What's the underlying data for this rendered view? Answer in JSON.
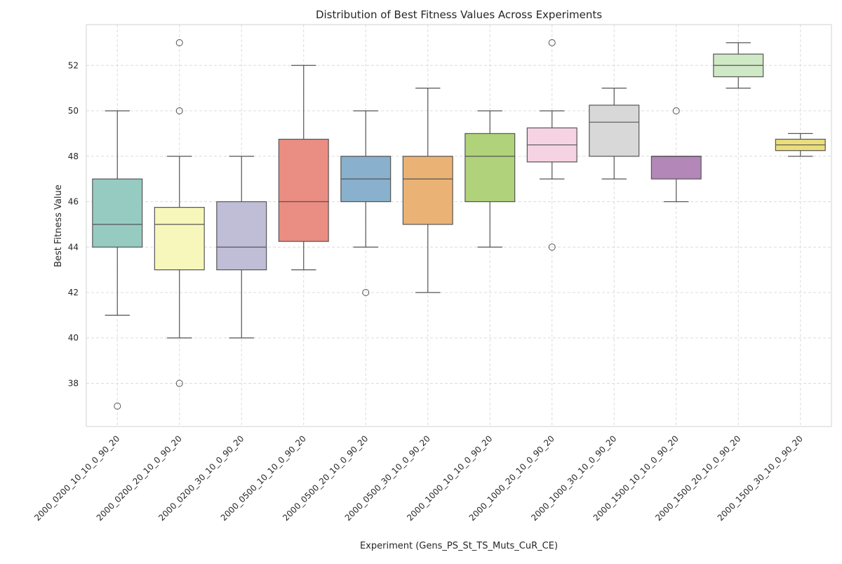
{
  "chart_data": {
    "type": "box",
    "title": "Distribution of Best Fitness Values Across Experiments",
    "xlabel": "Experiment (Gens_PS_St_TS_Muts_CuR_CE)",
    "ylabel": "Best Fitness Value",
    "ylim": [
      36.1,
      53.8
    ],
    "yticks": [
      38,
      40,
      42,
      44,
      46,
      48,
      50,
      52
    ],
    "grid": true,
    "categories": [
      "2000_0200_10_10_0_90_20",
      "2000_0200_20_10_0_90_20",
      "2000_0200_30_10_0_90_20",
      "2000_0500_10_10_0_90_20",
      "2000_0500_20_10_0_90_20",
      "2000_0500_30_10_0_90_20",
      "2000_1000_10_10_0_90_20",
      "2000_1000_20_10_0_90_20",
      "2000_1000_30_10_0_90_20",
      "2000_1500_10_10_0_90_20",
      "2000_1500_20_10_0_90_20",
      "2000_1500_30_10_0_90_20"
    ],
    "boxes": [
      {
        "whisker_low": 41,
        "q1": 44,
        "median": 45,
        "q3": 47,
        "whisker_high": 50,
        "outliers": [
          37
        ],
        "color": "#96cbc2"
      },
      {
        "whisker_low": 40,
        "q1": 43,
        "median": 45,
        "q3": 45.75,
        "whisker_high": 48,
        "outliers": [
          38,
          50,
          53
        ],
        "color": "#f7f7bb"
      },
      {
        "whisker_low": 40,
        "q1": 43,
        "median": 44,
        "q3": 46,
        "whisker_high": 48,
        "outliers": [],
        "color": "#c0bdd7"
      },
      {
        "whisker_low": 43,
        "q1": 44.25,
        "median": 46,
        "q3": 48.75,
        "whisker_high": 52,
        "outliers": [],
        "color": "#ea8d82"
      },
      {
        "whisker_low": 44,
        "q1": 46,
        "median": 47,
        "q3": 48,
        "whisker_high": 50,
        "outliers": [
          42
        ],
        "color": "#89b0cc"
      },
      {
        "whisker_low": 42,
        "q1": 45,
        "median": 47,
        "q3": 48,
        "whisker_high": 51,
        "outliers": [],
        "color": "#ebb275"
      },
      {
        "whisker_low": 44,
        "q1": 46,
        "median": 48,
        "q3": 49,
        "whisker_high": 50,
        "outliers": [],
        "color": "#b0d27a"
      },
      {
        "whisker_low": 47,
        "q1": 47.75,
        "median": 48.5,
        "q3": 49.25,
        "whisker_high": 50,
        "outliers": [
          44,
          53
        ],
        "color": "#f6d3e3"
      },
      {
        "whisker_low": 47,
        "q1": 48,
        "median": 49.5,
        "q3": 50.25,
        "whisker_high": 51,
        "outliers": [],
        "color": "#d8d8d8"
      },
      {
        "whisker_low": 46,
        "q1": 47,
        "median": 48,
        "q3": 48,
        "whisker_high": 48,
        "outliers": [
          50
        ],
        "color": "#b387b8"
      },
      {
        "whisker_low": 51,
        "q1": 51.5,
        "median": 52,
        "q3": 52.5,
        "whisker_high": 53,
        "outliers": [],
        "color": "#cfe8c5"
      },
      {
        "whisker_low": 48,
        "q1": 48.25,
        "median": 48.5,
        "q3": 48.75,
        "whisker_high": 49,
        "outliers": [],
        "color": "#ebdd7a"
      }
    ]
  }
}
